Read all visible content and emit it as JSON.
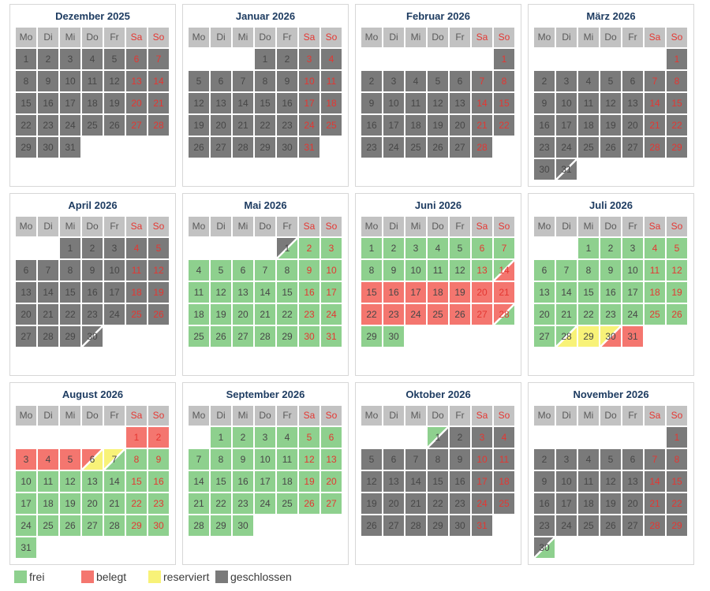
{
  "colors": {
    "states": {
      "f": "#8ed08e",
      "b": "#f4766f",
      "r": "#f8f278",
      "g": "#7a7a7a"
    },
    "split_line": "#ffffff",
    "header_bg": "#c2c2c2",
    "weekend_text": "#e43732",
    "day_text": "#474747",
    "title_text": "#1e3c61"
  },
  "weekdays": [
    {
      "label": "Mo",
      "weekend": false
    },
    {
      "label": "Di",
      "weekend": false
    },
    {
      "label": "Mi",
      "weekend": false
    },
    {
      "label": "Do",
      "weekend": false
    },
    {
      "label": "Fr",
      "weekend": false
    },
    {
      "label": "Sa",
      "weekend": true
    },
    {
      "label": "So",
      "weekend": true
    }
  ],
  "months": [
    {
      "title": "Dezember 2025",
      "start": 0,
      "days": [
        "g",
        "g",
        "g",
        "g",
        "g",
        "g",
        "g",
        "g",
        "g",
        "g",
        "g",
        "g",
        "g",
        "g",
        "g",
        "g",
        "g",
        "g",
        "g",
        "g",
        "g",
        "g",
        "g",
        "g",
        "g",
        "g",
        "g",
        "g",
        "g",
        "g",
        "g"
      ]
    },
    {
      "title": "Januar 2026",
      "start": 3,
      "days": [
        "g",
        "g",
        "g",
        "g",
        "g",
        "g",
        "g",
        "g",
        "g",
        "g",
        "g",
        "g",
        "g",
        "g",
        "g",
        "g",
        "g",
        "g",
        "g",
        "g",
        "g",
        "g",
        "g",
        "g",
        "g",
        "g",
        "g",
        "g",
        "g",
        "g",
        "g"
      ]
    },
    {
      "title": "Februar 2026",
      "start": 6,
      "days": [
        "g",
        "g",
        "g",
        "g",
        "g",
        "g",
        "g",
        "g",
        "g",
        "g",
        "g",
        "g",
        "g",
        "g",
        "g",
        "g",
        "g",
        "g",
        "g",
        "g",
        "g",
        "g",
        "g",
        "g",
        "g",
        "g",
        "g",
        "g"
      ]
    },
    {
      "title": "März 2026",
      "start": 6,
      "days": [
        "g",
        "g",
        "g",
        "g",
        "g",
        "g",
        "g",
        "g",
        "g",
        "g",
        "g",
        "g",
        "g",
        "g",
        "g",
        "g",
        "g",
        "g",
        "g",
        "g",
        "g",
        "g",
        "g",
        "g",
        "g",
        "g",
        "g",
        "g",
        "g",
        "g",
        "g/g"
      ]
    },
    {
      "title": "April 2026",
      "start": 2,
      "days": [
        "g",
        "g",
        "g",
        "g",
        "g",
        "g",
        "g",
        "g",
        "g",
        "g",
        "g",
        "g",
        "g",
        "g",
        "g",
        "g",
        "g",
        "g",
        "g",
        "g",
        "g",
        "g",
        "g",
        "g",
        "g",
        "g",
        "g",
        "g",
        "g",
        "g/g"
      ]
    },
    {
      "title": "Mai 2026",
      "start": 4,
      "days": [
        "g/f",
        "f",
        "f",
        "f",
        "f",
        "f",
        "f",
        "f",
        "f",
        "f",
        "f",
        "f",
        "f",
        "f",
        "f",
        "f",
        "f",
        "f",
        "f",
        "f",
        "f",
        "f",
        "f",
        "f",
        "f",
        "f",
        "f",
        "f",
        "f",
        "f",
        "f"
      ]
    },
    {
      "title": "Juni 2026",
      "start": 0,
      "days": [
        "f",
        "f",
        "f",
        "f",
        "f",
        "f",
        "f",
        "f",
        "f",
        "f",
        "f",
        "f",
        "f",
        "f/b",
        "b",
        "b",
        "b",
        "b",
        "b",
        "b",
        "b",
        "b",
        "b",
        "b",
        "b",
        "b",
        "b",
        "b/f",
        "f",
        "f"
      ]
    },
    {
      "title": "Juli 2026",
      "start": 2,
      "days": [
        "f",
        "f",
        "f",
        "f",
        "f",
        "f",
        "f",
        "f",
        "f",
        "f",
        "f",
        "f",
        "f",
        "f",
        "f",
        "f",
        "f",
        "f",
        "f",
        "f",
        "f",
        "f",
        "f",
        "f",
        "f",
        "f",
        "f",
        "f/r",
        "r",
        "r/b",
        "b"
      ]
    },
    {
      "title": "August 2026",
      "start": 5,
      "days": [
        "b",
        "b",
        "b",
        "b",
        "b",
        "b/r",
        "r/f",
        "f",
        "f",
        "f",
        "f",
        "f",
        "f",
        "f",
        "f",
        "f",
        "f",
        "f",
        "f",
        "f",
        "f",
        "f",
        "f",
        "f",
        "f",
        "f",
        "f",
        "f",
        "f",
        "f",
        "f"
      ]
    },
    {
      "title": "September 2026",
      "start": 1,
      "days": [
        "f",
        "f",
        "f",
        "f",
        "f",
        "f",
        "f",
        "f",
        "f",
        "f",
        "f",
        "f",
        "f",
        "f",
        "f",
        "f",
        "f",
        "f",
        "f",
        "f",
        "f",
        "f",
        "f",
        "f",
        "f",
        "f",
        "f",
        "f",
        "f",
        "f"
      ]
    },
    {
      "title": "Oktober 2026",
      "start": 3,
      "days": [
        "f/g",
        "g",
        "g",
        "g",
        "g",
        "g",
        "g",
        "g",
        "g",
        "g",
        "g",
        "g",
        "g",
        "g",
        "g",
        "g",
        "g",
        "g",
        "g",
        "g",
        "g",
        "g",
        "g",
        "g",
        "g",
        "g",
        "g",
        "g",
        "g",
        "g",
        "g"
      ]
    },
    {
      "title": "November 2026",
      "start": 6,
      "days": [
        "g",
        "g",
        "g",
        "g",
        "g",
        "g",
        "g",
        "g",
        "g",
        "g",
        "g",
        "g",
        "g",
        "g",
        "g",
        "g",
        "g",
        "g",
        "g",
        "g",
        "g",
        "g",
        "g",
        "g",
        "g",
        "g",
        "g",
        "g",
        "g",
        "g/f"
      ]
    }
  ],
  "legend": {
    "items": [
      {
        "label": "frei",
        "state": "f"
      },
      {
        "label": "belegt",
        "state": "b"
      },
      {
        "label": "reserviert",
        "state": "r"
      },
      {
        "label": "geschlossen",
        "state": "g"
      }
    ]
  }
}
